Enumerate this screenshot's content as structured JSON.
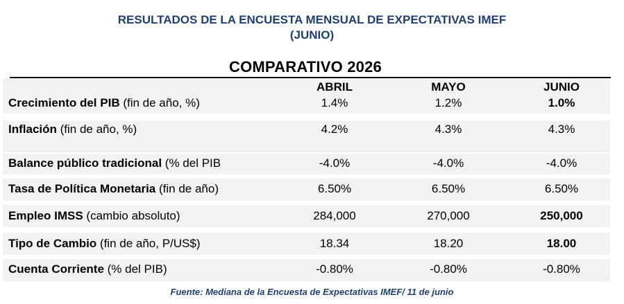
{
  "header": {
    "title_line1": "RESULTADOS DE LA ENCUESTA MENSUAL DE EXPECTATIVAS IMEF",
    "title_line2": "(JUNIO)",
    "subtitle": "COMPARATIVO 2026"
  },
  "table": {
    "columns": [
      "ABRIL",
      "MAYO",
      "JUNIO"
    ],
    "rows": [
      {
        "name": "Crecimiento del PIB",
        "note": " (fin de año, %)",
        "values": [
          "1.4%",
          "1.2%",
          "1.0%"
        ],
        "bold_last": true
      },
      {
        "name": "Inflación",
        "note": " (fin de año, %)",
        "values": [
          "4.2%",
          "4.3%",
          "4.3%"
        ],
        "bold_last": false
      },
      {
        "name": "Balance público tradicional",
        "note": " (% del PIB",
        "values": [
          "-4.0%",
          "-4.0%",
          "-4.0%"
        ],
        "bold_last": false
      },
      {
        "name": "Tasa de Política Monetaria",
        "note": " (fin de año)",
        "values": [
          "6.50%",
          "6.50%",
          "6.50%"
        ],
        "bold_last": false
      },
      {
        "name": "Empleo IMSS",
        "note": " (cambio absoluto)",
        "values": [
          "284,000",
          "270,000",
          "250,000"
        ],
        "bold_last": true
      },
      {
        "name": "Tipo de Cambio",
        "note": " (fin de año, P/US$)",
        "values": [
          "18.34",
          "18.20",
          "18.00"
        ],
        "bold_last": true
      },
      {
        "name": "Cuenta Corriente",
        "note": " (% del PIB)",
        "values": [
          "-0.80%",
          "-0.80%",
          "-0.80%"
        ],
        "bold_last": false
      }
    ]
  },
  "footer": {
    "source": "Fuente: Mediana de la Encuesta de Expectativas IMEF/ 11 de junio"
  },
  "colors": {
    "title_blue": "#1f3f73",
    "band_gray": "#f2f2f2"
  }
}
